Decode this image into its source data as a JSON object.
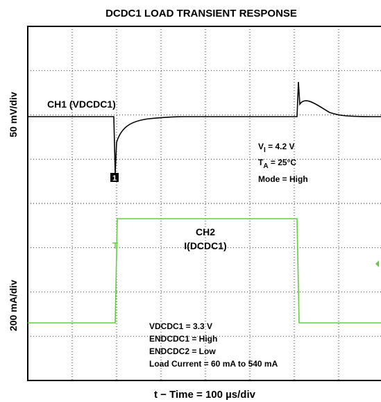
{
  "title": "DCDC1 LOAD TRANSIENT RESPONSE",
  "y_label_top": "50 mV/div",
  "y_label_bottom": "200 mA/div",
  "x_label": "t − Time = 100 µs/div",
  "ch1": {
    "label": "CH1 (VDCDC1)",
    "marker": "1"
  },
  "conditions": {
    "vi": {
      "main": "V",
      "sub": "I",
      "rest": " = 4.2 V"
    },
    "ta": {
      "main": "T",
      "sub": "A",
      "rest": " = 25°C"
    },
    "mode": "Mode = High"
  },
  "ch2": {
    "label_1": "CH2",
    "label_2": "I(DCDC1)"
  },
  "notes": [
    "VDCDC1 = 3.3 V",
    "ENDCDC1 = High",
    "ENDCDC2 = Low",
    "Load Current = 60 mA to 540 mA"
  ]
}
